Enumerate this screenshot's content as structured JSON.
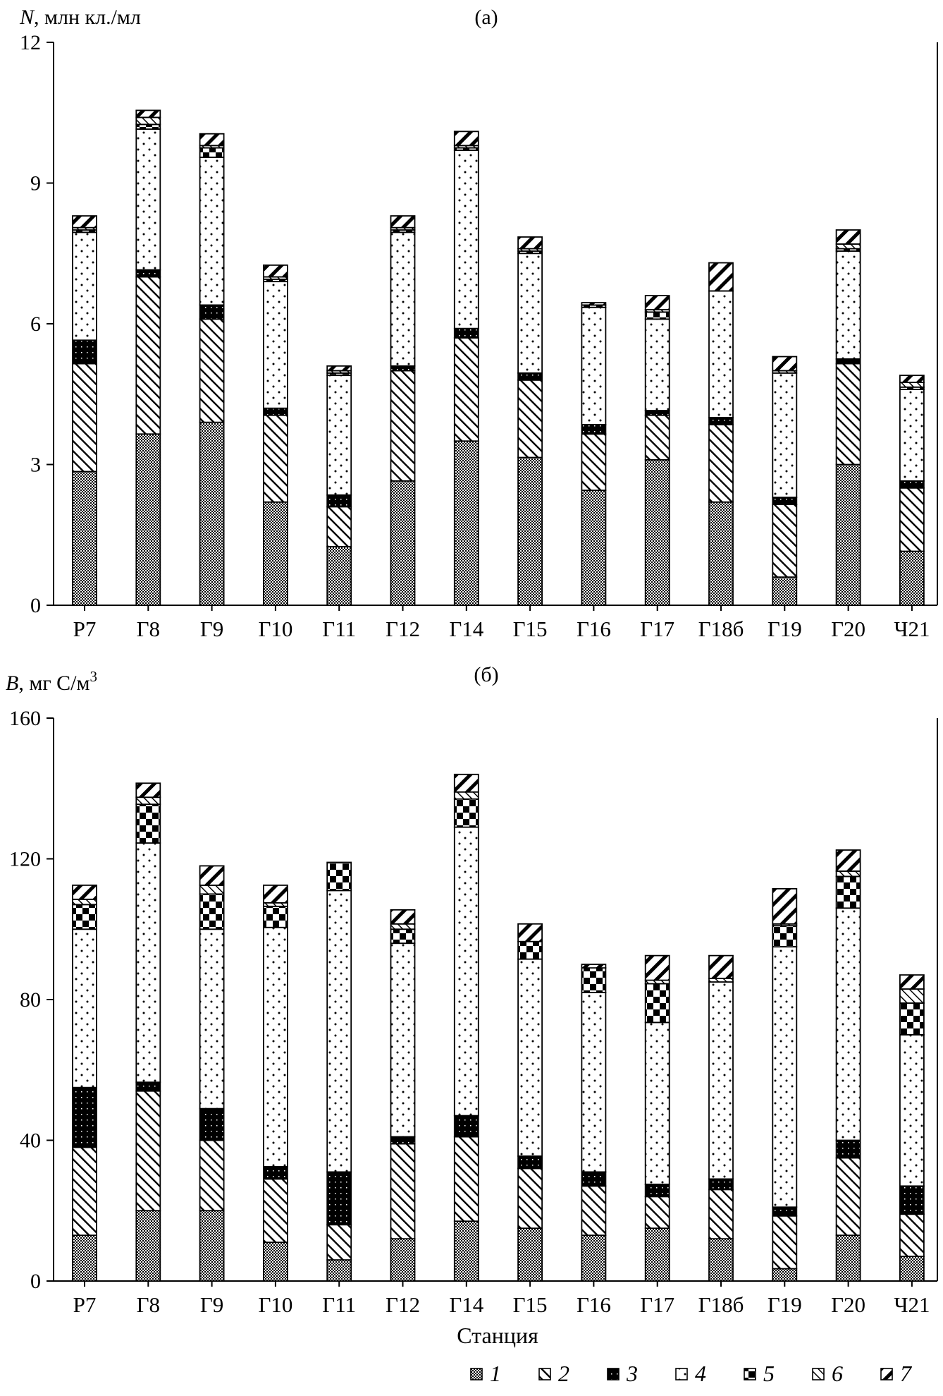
{
  "figure": {
    "xlabel": "Станция",
    "legend": [
      {
        "id": "1",
        "label": "1"
      },
      {
        "id": "2",
        "label": "2"
      },
      {
        "id": "3",
        "label": "3"
      },
      {
        "id": "4",
        "label": "4"
      },
      {
        "id": "5",
        "label": "5"
      },
      {
        "id": "6",
        "label": "6"
      },
      {
        "id": "7",
        "label": "7"
      }
    ]
  },
  "chart_data": [
    {
      "type": "bar",
      "stacked": true,
      "panel_label": "(а)",
      "ylabel_symbol": "N",
      "ylabel_unit": ", млн кл./мл",
      "ylabel_sup": "",
      "ylim": [
        0,
        12
      ],
      "yticks": [
        0,
        3,
        6,
        9,
        12
      ],
      "categories": [
        "Р7",
        "Г8",
        "Г9",
        "Г10",
        "Г11",
        "Г12",
        "Г14",
        "Г15",
        "Г16",
        "Г17",
        "Г18б",
        "Г19",
        "Г20",
        "Ч21"
      ],
      "series": [
        {
          "name": "1",
          "values": [
            2.85,
            3.65,
            3.9,
            2.2,
            1.25,
            2.65,
            3.5,
            3.15,
            2.45,
            3.1,
            2.2,
            0.6,
            3.0,
            1.15
          ]
        },
        {
          "name": "2",
          "values": [
            2.3,
            3.35,
            2.2,
            1.85,
            0.85,
            2.35,
            2.2,
            1.65,
            1.2,
            0.95,
            1.65,
            1.55,
            2.15,
            1.35
          ]
        },
        {
          "name": "3",
          "values": [
            0.5,
            0.15,
            0.3,
            0.15,
            0.25,
            0.1,
            0.2,
            0.15,
            0.2,
            0.1,
            0.15,
            0.15,
            0.1,
            0.15
          ]
        },
        {
          "name": "4",
          "values": [
            2.3,
            3.0,
            3.15,
            2.7,
            2.55,
            2.85,
            3.8,
            2.55,
            2.5,
            1.95,
            2.7,
            2.65,
            2.3,
            1.95
          ]
        },
        {
          "name": "5",
          "values": [
            0.05,
            0.1,
            0.2,
            0.05,
            0.05,
            0.05,
            0.05,
            0.05,
            0.05,
            0.15,
            0.0,
            0.0,
            0.05,
            0.05
          ]
        },
        {
          "name": "6",
          "values": [
            0.05,
            0.15,
            0.05,
            0.05,
            0.05,
            0.05,
            0.05,
            0.05,
            0.0,
            0.05,
            0.0,
            0.05,
            0.1,
            0.1
          ]
        },
        {
          "name": "7",
          "values": [
            0.25,
            0.15,
            0.25,
            0.25,
            0.1,
            0.25,
            0.3,
            0.25,
            0.05,
            0.3,
            0.6,
            0.3,
            0.3,
            0.15
          ]
        }
      ]
    },
    {
      "type": "bar",
      "stacked": true,
      "panel_label": "(б)",
      "ylabel_symbol": "B",
      "ylabel_unit": ", мг С/м",
      "ylabel_sup": "3",
      "ylim": [
        0,
        160
      ],
      "yticks": [
        0,
        40,
        80,
        120,
        160
      ],
      "categories": [
        "Р7",
        "Г8",
        "Г9",
        "Г10",
        "Г11",
        "Г12",
        "Г14",
        "Г15",
        "Г16",
        "Г17",
        "Г18б",
        "Г19",
        "Г20",
        "Ч21"
      ],
      "series": [
        {
          "name": "1",
          "values": [
            13,
            20,
            20,
            11,
            6,
            12,
            17,
            15,
            13,
            15,
            12,
            3.5,
            13,
            7
          ]
        },
        {
          "name": "2",
          "values": [
            25,
            34,
            20,
            18,
            10,
            27,
            24,
            17,
            14,
            9,
            14,
            15,
            22,
            12
          ]
        },
        {
          "name": "3",
          "values": [
            17,
            2.5,
            9,
            3.5,
            15,
            2,
            6,
            3.5,
            4,
            3.5,
            3,
            2.5,
            5,
            8
          ]
        },
        {
          "name": "4",
          "values": [
            45,
            68,
            51,
            68,
            80,
            55,
            82,
            56,
            51,
            46,
            56,
            74,
            66,
            43
          ]
        },
        {
          "name": "5",
          "values": [
            7,
            11,
            10,
            6,
            8,
            4,
            8,
            5,
            7,
            11,
            0,
            6,
            9,
            9
          ]
        },
        {
          "name": "6",
          "values": [
            1.5,
            2,
            2.5,
            1,
            0,
            1.5,
            2,
            0,
            0,
            1,
            1,
            0.5,
            1.5,
            4
          ]
        },
        {
          "name": "7",
          "values": [
            4,
            4,
            5.5,
            5,
            0,
            4,
            5,
            5,
            1,
            7,
            6.5,
            10,
            6,
            4
          ]
        }
      ]
    }
  ]
}
